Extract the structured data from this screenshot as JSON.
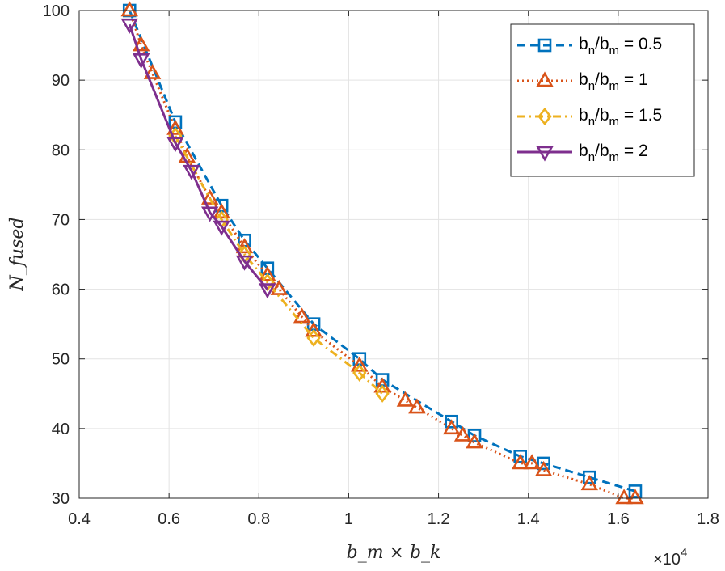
{
  "chart_data": {
    "type": "line",
    "title": "",
    "xlabel": "b_m × b_k",
    "ylabel": "N_fused",
    "x_exponent_label": "×10",
    "x_exponent_power": "4",
    "xlim": [
      0.4,
      1.8
    ],
    "ylim": [
      30,
      100
    ],
    "x_ticks": [
      0.4,
      0.6,
      0.8,
      1.0,
      1.2,
      1.4,
      1.6,
      1.8
    ],
    "x_tick_labels": [
      "0.4",
      "0.6",
      "0.8",
      "1",
      "1.2",
      "1.4",
      "1.6",
      "1.8"
    ],
    "y_ticks": [
      30,
      40,
      50,
      60,
      70,
      80,
      90,
      100
    ],
    "y_tick_labels": [
      "30",
      "40",
      "50",
      "60",
      "70",
      "80",
      "90",
      "100"
    ],
    "grid": true,
    "legend_position": "top-right",
    "series": [
      {
        "name": "b_n/b_m = 0.5",
        "label_main": "b",
        "label_sub1": "n",
        "label_mid": "/b",
        "label_sub2": "m",
        "label_tail": " = 0.5",
        "color": "#0072BD",
        "marker": "square",
        "dash": "dashed",
        "x": [
          0.512,
          0.614,
          0.717,
          0.768,
          0.819,
          0.922,
          1.024,
          1.075,
          1.229,
          1.28,
          1.382,
          1.434,
          1.536,
          1.638
        ],
        "y": [
          100,
          84,
          72,
          67,
          63,
          55,
          50,
          47,
          41,
          39,
          36,
          35,
          33,
          31
        ]
      },
      {
        "name": "b_n/b_m = 1",
        "label_main": "b",
        "label_sub1": "n",
        "label_mid": "/b",
        "label_sub2": "m",
        "label_tail": " = 1",
        "color": "#D95319",
        "marker": "triangle-up",
        "dash": "dotted",
        "x": [
          0.512,
          0.538,
          0.563,
          0.614,
          0.64,
          0.691,
          0.717,
          0.768,
          0.819,
          0.845,
          0.896,
          0.922,
          1.024,
          1.075,
          1.126,
          1.152,
          1.229,
          1.254,
          1.28,
          1.382,
          1.408,
          1.434,
          1.536,
          1.613,
          1.638
        ],
        "y": [
          100,
          95,
          91,
          83,
          79,
          73,
          71,
          66,
          62,
          60,
          56,
          54,
          49,
          46,
          44,
          43,
          40,
          39,
          38,
          35,
          35,
          34,
          32,
          30,
          30
        ]
      },
      {
        "name": "b_n/b_m = 1.5",
        "label_main": "b",
        "label_sub1": "n",
        "label_mid": "/b",
        "label_sub2": "m",
        "label_tail": " = 1.5",
        "color": "#EDB120",
        "marker": "diamond",
        "dash": "dashdot",
        "x": [
          0.614,
          0.717,
          0.768,
          0.819,
          0.922,
          1.024,
          1.075
        ],
        "y": [
          82,
          70,
          65,
          61,
          53,
          48,
          45
        ]
      },
      {
        "name": "b_n/b_m = 2",
        "label_main": "b",
        "label_sub1": "n",
        "label_mid": "/b",
        "label_sub2": "m",
        "label_tail": " = 2",
        "color": "#7E2F8E",
        "marker": "triangle-down",
        "dash": "solid",
        "x": [
          0.512,
          0.538,
          0.614,
          0.65,
          0.691,
          0.717,
          0.768,
          0.819
        ],
        "y": [
          98,
          93,
          81,
          77,
          71,
          69,
          64,
          60
        ]
      }
    ]
  }
}
